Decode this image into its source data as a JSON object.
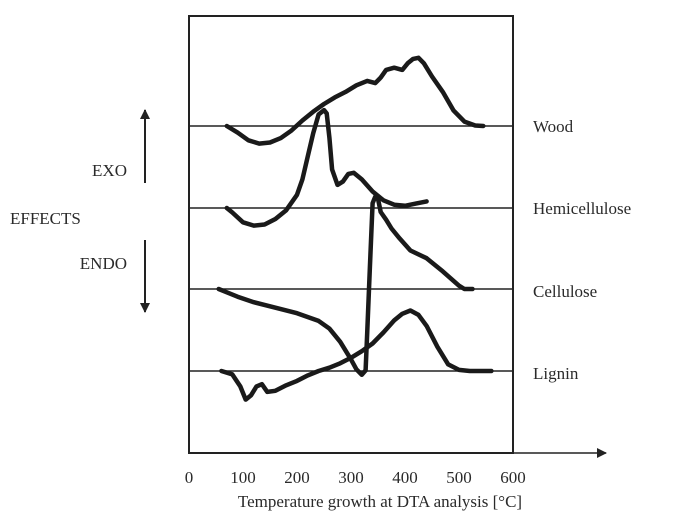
{
  "chart_data": {
    "type": "line",
    "title": "",
    "xlabel": "Temperature growth at DTA analysis [°C]",
    "ylabel": "",
    "xlim": [
      0,
      600
    ],
    "xticks": [
      "0",
      "100",
      "200",
      "300",
      "400",
      "500",
      "600"
    ],
    "grid": false,
    "effects": {
      "label": "EFFECTS",
      "exo": "EXO",
      "endo": "ENDO"
    },
    "series": [
      {
        "name": "Wood",
        "x": [
          70,
          90,
          110,
          130,
          150,
          170,
          190,
          210,
          230,
          250,
          270,
          290,
          310,
          330,
          345,
          355,
          365,
          380,
          395,
          405,
          415,
          425,
          435,
          450,
          470,
          490,
          510,
          530,
          545
        ],
        "y": [
          0,
          -0.6,
          -1.3,
          -1.6,
          -1.5,
          -1.1,
          -0.4,
          0.5,
          1.3,
          2,
          2.6,
          3.1,
          3.7,
          4.1,
          3.9,
          4.4,
          5.1,
          5.3,
          5.1,
          5.7,
          6.1,
          6.2,
          5.7,
          4.5,
          3.1,
          1.4,
          0.4,
          0.05,
          0
        ]
      },
      {
        "name": "Hemicellulose",
        "x": [
          70,
          80,
          100,
          120,
          140,
          160,
          180,
          200,
          210,
          220,
          230,
          240,
          250,
          255,
          260,
          265,
          275,
          285,
          295,
          305,
          320,
          340,
          360,
          380,
          400,
          420,
          440
        ],
        "y": [
          0,
          -0.4,
          -1.3,
          -1.6,
          -1.5,
          -1,
          -0.2,
          1.2,
          2.6,
          4.7,
          6.8,
          8.5,
          8.9,
          8.6,
          6.4,
          3.5,
          2.1,
          2.4,
          3.1,
          3.2,
          2.6,
          1.5,
          0.7,
          0.3,
          0.2,
          0.4,
          0.6
        ]
      },
      {
        "name": "Cellulose",
        "x": [
          55,
          70,
          90,
          120,
          160,
          200,
          240,
          260,
          280,
          300,
          310,
          320,
          327,
          330,
          335,
          340,
          345,
          350,
          355,
          365,
          375,
          390,
          410,
          440,
          470,
          500,
          510,
          525
        ],
        "y": [
          0,
          -0.3,
          -0.7,
          -1.2,
          -1.7,
          -2.2,
          -2.9,
          -3.6,
          -4.8,
          -6.4,
          -7.3,
          -7.8,
          -7.4,
          -4,
          2,
          7.8,
          8.4,
          8.2,
          7,
          6.3,
          5.5,
          4.6,
          3.5,
          2.8,
          1.6,
          0.3,
          0,
          0
        ]
      },
      {
        "name": "Lignin",
        "x": [
          60,
          80,
          95,
          105,
          115,
          125,
          135,
          145,
          160,
          180,
          200,
          220,
          240,
          260,
          280,
          300,
          320,
          340,
          360,
          380,
          395,
          410,
          425,
          440,
          460,
          480,
          500,
          520,
          540,
          560
        ],
        "y": [
          0,
          -0.3,
          -1.4,
          -2.6,
          -2.2,
          -1.4,
          -1.2,
          -1.9,
          -1.8,
          -1.3,
          -0.9,
          -0.4,
          0,
          0.3,
          0.7,
          1.2,
          1.8,
          2.5,
          3.5,
          4.6,
          5.2,
          5.5,
          5.1,
          4.1,
          2.2,
          0.6,
          0.1,
          0,
          0,
          0
        ]
      }
    ]
  }
}
